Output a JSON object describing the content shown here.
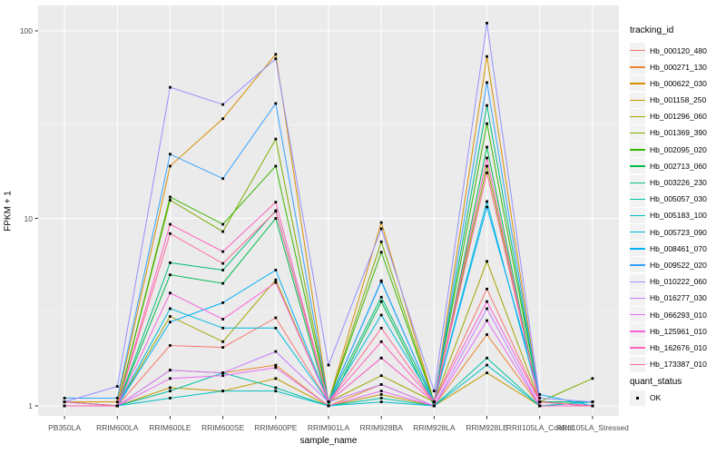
{
  "figure": {
    "background": "#FFFFFF",
    "panel_background": "#EBEBEB",
    "gridline_major_color": "#FFFFFF",
    "gridline_minor_color": "rgba(255,255,255,0.55)",
    "axis_text_color": "#4D4D4D",
    "tick_color": "#333333",
    "point_color": "#000000",
    "legend_key_background": "#F2F2F2"
  },
  "chart_data": {
    "type": "line",
    "title": "",
    "xlabel": "sample_name",
    "ylabel": "FPKM + 1",
    "y_scale": "log10",
    "y_ticks": [
      1,
      10,
      100
    ],
    "y_minor_ticks": [
      3.1623,
      31.623
    ],
    "ylim": [
      0.88,
      130
    ],
    "grid": true,
    "legend_position": "right",
    "point_shape": "small-black-square",
    "categories": [
      "PB350LA",
      "RRIM600LA",
      "RRIM600LE",
      "RRIM600SE",
      "RRIM600PE",
      "RRIM901LA",
      "RRIM928BA",
      "RRIM928LA",
      "RRIM928LE",
      "RRII105LA_Control",
      "RRII105LA_Stressed"
    ],
    "legend": {
      "tracking_title": "tracking_id",
      "quant_title": "quant_status",
      "quant_value": "OK"
    },
    "series": [
      {
        "name": "Hb_000120_480",
        "color": "#F8766D",
        "values": [
          1.05,
          1.0,
          2.1,
          2.05,
          2.95,
          1.05,
          1.8,
          1.05,
          4.2,
          1.05,
          1.0
        ]
      },
      {
        "name": "Hb_000271_130",
        "color": "#EA8331",
        "values": [
          1.0,
          1.0,
          1.55,
          1.5,
          1.65,
          1.0,
          1.3,
          1.0,
          2.4,
          1.0,
          1.0
        ]
      },
      {
        "name": "Hb_000622_030",
        "color": "#D89000",
        "values": [
          1.05,
          1.05,
          19.0,
          34.0,
          75.0,
          1.05,
          9.5,
          1.05,
          73.0,
          1.05,
          1.05
        ]
      },
      {
        "name": "Hb_001158_250",
        "color": "#C09B00",
        "values": [
          1.0,
          1.0,
          1.25,
          1.2,
          1.4,
          1.0,
          1.15,
          1.0,
          1.5,
          1.0,
          1.0
        ]
      },
      {
        "name": "Hb_001296_060",
        "color": "#A3A500",
        "values": [
          1.0,
          1.0,
          3.0,
          2.2,
          4.7,
          1.05,
          1.45,
          1.05,
          5.9,
          1.05,
          1.0
        ]
      },
      {
        "name": "Hb_001369_390",
        "color": "#7CAE00",
        "values": [
          1.0,
          1.0,
          12.5,
          8.5,
          26.5,
          1.05,
          7.5,
          1.05,
          19.0,
          1.05,
          1.4
        ]
      },
      {
        "name": "Hb_002095_020",
        "color": "#39B600",
        "values": [
          1.05,
          1.0,
          13.0,
          9.3,
          19.0,
          1.05,
          6.6,
          1.05,
          32.0,
          1.05,
          1.05
        ]
      },
      {
        "name": "Hb_002713_060",
        "color": "#00BB4E",
        "values": [
          1.0,
          1.0,
          5.0,
          4.5,
          10.0,
          1.0,
          3.6,
          1.0,
          24.0,
          1.0,
          1.0
        ]
      },
      {
        "name": "Hb_003226_230",
        "color": "#00BF7D",
        "values": [
          1.0,
          1.0,
          5.8,
          5.3,
          11.0,
          1.05,
          3.8,
          1.05,
          40.0,
          1.05,
          1.05
        ]
      },
      {
        "name": "Hb_005057_030",
        "color": "#00C1A3",
        "values": [
          1.0,
          1.0,
          1.2,
          1.5,
          1.25,
          1.0,
          1.1,
          1.0,
          1.8,
          1.0,
          1.05
        ]
      },
      {
        "name": "Hb_005183_100",
        "color": "#00BFC4",
        "values": [
          1.0,
          1.0,
          1.1,
          1.2,
          1.2,
          1.0,
          1.05,
          1.0,
          1.65,
          1.0,
          1.05
        ]
      },
      {
        "name": "Hb_005723_090",
        "color": "#00BAE0",
        "values": [
          1.0,
          1.0,
          3.3,
          2.6,
          2.6,
          1.05,
          3.05,
          1.05,
          12.3,
          1.05,
          1.0
        ]
      },
      {
        "name": "Hb_008461_070",
        "color": "#00B0F6",
        "values": [
          1.05,
          1.0,
          2.8,
          3.55,
          5.3,
          1.05,
          4.6,
          1.05,
          11.5,
          1.15,
          1.0
        ]
      },
      {
        "name": "Hb_009522_020",
        "color": "#35A2FF",
        "values": [
          1.1,
          1.1,
          22.0,
          16.3,
          41.0,
          1.05,
          4.65,
          1.05,
          53.0,
          1.05,
          1.0
        ]
      },
      {
        "name": "Hb_010222_060",
        "color": "#9590FF",
        "values": [
          1.05,
          1.27,
          50.0,
          40.5,
          71.0,
          1.65,
          8.8,
          1.2,
          110.0,
          1.1,
          1.05
        ]
      },
      {
        "name": "Hb_016277_030",
        "color": "#C77CFF",
        "values": [
          1.0,
          1.0,
          1.55,
          1.5,
          1.95,
          1.05,
          1.3,
          1.0,
          3.3,
          1.0,
          1.0
        ]
      },
      {
        "name": "Hb_066293_010",
        "color": "#E76BF3",
        "values": [
          1.0,
          1.0,
          1.4,
          1.45,
          1.6,
          1.0,
          1.2,
          1.0,
          2.85,
          1.0,
          1.0
        ]
      },
      {
        "name": "Hb_125961_010",
        "color": "#FA62DB",
        "values": [
          1.0,
          1.0,
          4.0,
          2.9,
          4.55,
          1.05,
          1.8,
          1.05,
          3.6,
          1.05,
          1.0
        ]
      },
      {
        "name": "Hb_162676_010",
        "color": "#FF62BC",
        "values": [
          1.0,
          1.0,
          9.3,
          6.65,
          12.2,
          1.05,
          2.2,
          1.05,
          21.0,
          1.0,
          1.0
        ]
      },
      {
        "name": "Hb_173387_010",
        "color": "#FF6A98",
        "values": [
          1.05,
          1.0,
          8.3,
          5.75,
          10.9,
          1.05,
          2.6,
          1.05,
          17.5,
          1.05,
          1.0
        ]
      }
    ]
  }
}
